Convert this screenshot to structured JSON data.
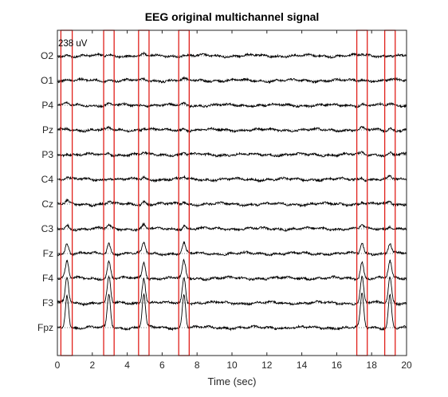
{
  "chart_data": {
    "type": "line",
    "title": "EEG original multichannel signal",
    "xlabel": "Time (sec)",
    "ylabel": "",
    "xlim": [
      0,
      20
    ],
    "x_ticks": [
      "0",
      "2",
      "4",
      "6",
      "8",
      "10",
      "12",
      "14",
      "16",
      "18",
      "20"
    ],
    "scale_label": "238 uV",
    "grid": false,
    "baselines": "dotted",
    "channels": [
      "O2",
      "O1",
      "P4",
      "Pz",
      "P3",
      "C4",
      "Cz",
      "C3",
      "Fz",
      "F4",
      "F3",
      "Fpz"
    ],
    "blink_highlights_sec": [
      [
        0.2,
        0.85
      ],
      [
        2.65,
        3.25
      ],
      [
        4.65,
        5.25
      ],
      [
        6.95,
        7.55
      ],
      [
        17.15,
        17.75
      ],
      [
        18.75,
        19.35
      ]
    ],
    "blink_peak_times_sec": [
      0.55,
      2.95,
      4.95,
      7.25,
      17.45,
      19.05
    ],
    "channel_blink_amplitude_uV": [
      5,
      5,
      6,
      8,
      8,
      10,
      12,
      16,
      45,
      75,
      115,
      150
    ],
    "colors": {
      "signal": "#000000",
      "highlight": "#e0201b",
      "axis": "#262626",
      "baseline": "#555555"
    }
  }
}
